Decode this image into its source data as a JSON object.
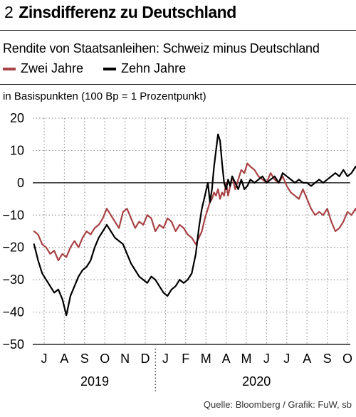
{
  "header": {
    "number": "2",
    "title": "Zinsdifferenz zu Deutschland",
    "subtitle": "Rendite von Staatsanleihen: Schweiz minus Deutschland",
    "unit": "in Basispunkten (100 Bp = 1 Prozentpunkt)",
    "source": "Quelle: Bloomberg / Grafik: FuW, sb"
  },
  "colors": {
    "zwei_jahre": "#a84245",
    "zehn_jahre": "#000000",
    "grid": "#9a9a9a"
  },
  "chart_data": {
    "type": "line",
    "title": "Zinsdifferenz zu Deutschland",
    "subtitle": "Rendite von Staatsanleihen: Schweiz minus Deutschland",
    "ylabel": "in Basispunkten (100 Bp = 1 Prozentpunkt)",
    "ylim": [
      -50,
      20
    ],
    "yticks": [
      20,
      10,
      0,
      -10,
      -20,
      -30,
      -40,
      -50
    ],
    "xlim": [
      0,
      16
    ],
    "xticks": [
      0,
      1,
      2,
      3,
      4,
      5,
      6,
      7,
      8,
      9,
      10,
      11,
      12,
      13,
      14,
      15
    ],
    "xtick_labels": [
      "J",
      "A",
      "S",
      "O",
      "N",
      "D",
      "J",
      "F",
      "M",
      "A",
      "M",
      "J",
      "J",
      "A",
      "S",
      "O"
    ],
    "year_labels": [
      {
        "label": "2019",
        "x": 2.5
      },
      {
        "label": "2020",
        "x": 10.5
      }
    ],
    "year_divider": 5.5,
    "grid": true,
    "legend_position": "top-left",
    "series": [
      {
        "name": "Zwei Jahre",
        "color": "#a84245",
        "x": [
          -0.5,
          -0.3,
          -0.1,
          0.1,
          0.3,
          0.5,
          0.7,
          0.9,
          1.1,
          1.3,
          1.5,
          1.7,
          1.9,
          2.1,
          2.3,
          2.5,
          2.7,
          2.9,
          3.1,
          3.3,
          3.5,
          3.7,
          3.9,
          4.1,
          4.3,
          4.5,
          4.7,
          4.9,
          5.1,
          5.3,
          5.5,
          5.7,
          5.9,
          6.1,
          6.3,
          6.5,
          6.7,
          6.9,
          7.1,
          7.3,
          7.5,
          7.65,
          7.8,
          7.95,
          8.1,
          8.2,
          8.3,
          8.4,
          8.5,
          8.6,
          8.7,
          8.8,
          8.9,
          9.0,
          9.1,
          9.2,
          9.3,
          9.45,
          9.6,
          9.75,
          9.9,
          10.05,
          10.2,
          10.4,
          10.6,
          10.8,
          11.0,
          11.2,
          11.4,
          11.6,
          11.8,
          12.0,
          12.2,
          12.4,
          12.6,
          12.8,
          13.0,
          13.2,
          13.4,
          13.6,
          13.8,
          14.0,
          14.2,
          14.4,
          14.6,
          14.8,
          15.0,
          15.2,
          15.4,
          15.6,
          15.8,
          16.0
        ],
        "values": [
          -15,
          -16,
          -19,
          -20,
          -22,
          -21,
          -24,
          -22,
          -23,
          -20,
          -18,
          -20,
          -17,
          -15,
          -16,
          -14,
          -13,
          -11,
          -8,
          -10,
          -12,
          -14,
          -9,
          -8,
          -11,
          -14,
          -12,
          -13,
          -10,
          -11,
          -15,
          -13,
          -14,
          -11,
          -12,
          -15,
          -13,
          -14,
          -16,
          -17,
          -19,
          -17,
          -15,
          -11,
          -8,
          -6,
          -5,
          -3,
          -4,
          -2,
          -5,
          -3,
          -4,
          0,
          -4,
          -1,
          2,
          -2,
          1,
          4,
          3,
          6,
          5,
          4,
          2,
          1,
          0,
          3,
          1,
          0,
          2,
          -1,
          -3,
          -4,
          -5,
          -2,
          -5,
          -8,
          -10,
          -9,
          -10,
          -8,
          -12,
          -15,
          -14,
          -12,
          -9,
          -10,
          -8,
          -11,
          -9,
          -7
        ]
      },
      {
        "name": "Zehn Jahre",
        "color": "#000000",
        "x": [
          -0.5,
          -0.3,
          -0.1,
          0.1,
          0.3,
          0.5,
          0.7,
          0.9,
          1.1,
          1.3,
          1.5,
          1.7,
          1.9,
          2.1,
          2.3,
          2.5,
          2.7,
          2.9,
          3.1,
          3.3,
          3.5,
          3.7,
          3.9,
          4.1,
          4.3,
          4.5,
          4.7,
          4.9,
          5.1,
          5.3,
          5.5,
          5.7,
          5.9,
          6.1,
          6.3,
          6.5,
          6.7,
          6.9,
          7.1,
          7.3,
          7.5,
          7.65,
          7.8,
          7.95,
          8.1,
          8.2,
          8.3,
          8.4,
          8.5,
          8.6,
          8.7,
          8.8,
          8.9,
          9.0,
          9.1,
          9.2,
          9.3,
          9.45,
          9.6,
          9.75,
          9.9,
          10.05,
          10.2,
          10.4,
          10.6,
          10.8,
          11.0,
          11.2,
          11.4,
          11.6,
          11.8,
          12.0,
          12.2,
          12.4,
          12.6,
          12.8,
          13.0,
          13.2,
          13.4,
          13.6,
          13.8,
          14.0,
          14.2,
          14.4,
          14.6,
          14.8,
          15.0,
          15.2,
          15.4,
          15.6,
          15.8,
          16.0
        ],
        "values": [
          -19,
          -24,
          -28,
          -30,
          -32,
          -34,
          -33,
          -36,
          -41,
          -35,
          -32,
          -29,
          -27,
          -26,
          -24,
          -20,
          -17,
          -15,
          -13,
          -15,
          -17,
          -18,
          -19,
          -22,
          -25,
          -27,
          -29,
          -30,
          -31,
          -29,
          -30,
          -32,
          -34,
          -35,
          -33,
          -32,
          -30,
          -31,
          -30,
          -28,
          -22,
          -14,
          -8,
          -4,
          0,
          -6,
          -2,
          5,
          10,
          15,
          13,
          6,
          0,
          -2,
          1,
          -1,
          2,
          0,
          -2,
          1,
          -2,
          -1,
          1,
          0,
          1,
          2,
          0,
          1,
          2,
          0,
          3,
          2,
          1,
          0,
          1,
          0,
          0,
          -1,
          0,
          1,
          0,
          1,
          2,
          3,
          2,
          4,
          2,
          3,
          5,
          3,
          6,
          5
        ]
      }
    ]
  }
}
